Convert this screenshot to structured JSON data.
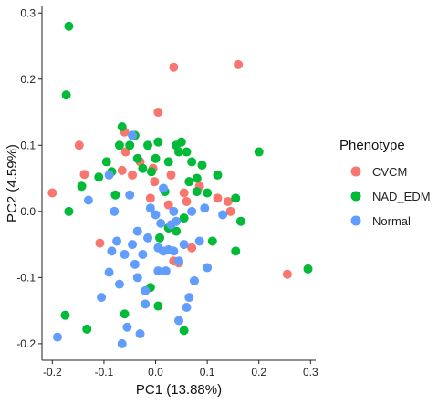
{
  "chart_data": {
    "type": "scatter",
    "xlabel": "PC1 (13.88%)",
    "ylabel": "PC2 (4.59%)",
    "xlim": [
      -0.22,
      0.31
    ],
    "ylim": [
      -0.225,
      0.31
    ],
    "xticks": [
      -0.2,
      -0.1,
      0.0,
      0.1,
      0.2,
      0.3
    ],
    "xtick_labels": [
      "-0.2",
      "-0.1",
      "0.0",
      "0.1",
      "0.2",
      "0.3"
    ],
    "yticks": [
      -0.2,
      -0.1,
      0.0,
      0.1,
      0.2,
      0.3
    ],
    "ytick_labels": [
      "-0.2",
      "-0.1",
      "0.0",
      "0.1",
      "0.2",
      "0.3"
    ],
    "grid": false,
    "legend": {
      "title": "Phenotype",
      "placement": "right"
    },
    "series": [
      {
        "name": "CVCM",
        "color": "#F8766D",
        "points": [
          [
            -0.2,
            0.028
          ],
          [
            -0.148,
            0.1
          ],
          [
            -0.138,
            0.056
          ],
          [
            -0.108,
            -0.048
          ],
          [
            0.035,
            0.218
          ],
          [
            0.16,
            0.222
          ],
          [
            0.005,
            0.15
          ],
          [
            -0.058,
            0.09
          ],
          [
            -0.045,
            0.055
          ],
          [
            -0.065,
            0.062
          ],
          [
            -0.03,
            0.075
          ],
          [
            -0.005,
            0.065
          ],
          [
            -0.002,
            0.045
          ],
          [
            -0.01,
            0.02
          ],
          [
            0.03,
            0.055
          ],
          [
            0.025,
            0.01
          ],
          [
            0.06,
            0.015
          ],
          [
            0.055,
            0.028
          ],
          [
            0.085,
            0.038
          ],
          [
            0.035,
            -0.075
          ],
          [
            0.045,
            -0.078
          ],
          [
            0.12,
            0.02
          ],
          [
            0.145,
            0.0
          ],
          [
            0.14,
            0.015
          ],
          [
            0.07,
            -0.055
          ],
          [
            0.255,
            -0.095
          ],
          [
            -0.06,
            0.12
          ]
        ]
      },
      {
        "name": "NAD_EDM",
        "color": "#00BA38",
        "points": [
          [
            -0.168,
            0.28
          ],
          [
            -0.173,
            0.176
          ],
          [
            -0.175,
            -0.157
          ],
          [
            -0.168,
            0.0
          ],
          [
            -0.143,
            0.038
          ],
          [
            -0.133,
            -0.178
          ],
          [
            -0.11,
            0.052
          ],
          [
            -0.095,
            0.075
          ],
          [
            -0.085,
            0.06
          ],
          [
            -0.078,
            0.025
          ],
          [
            -0.07,
            0.1
          ],
          [
            -0.065,
            0.128
          ],
          [
            -0.05,
            0.1
          ],
          [
            -0.04,
            0.115
          ],
          [
            -0.035,
            0.08
          ],
          [
            -0.025,
            0.065
          ],
          [
            -0.015,
            0.1
          ],
          [
            -0.008,
            0.06
          ],
          [
            0.0,
            0.08
          ],
          [
            0.005,
            -0.143
          ],
          [
            0.018,
            0.03
          ],
          [
            0.025,
            0.075
          ],
          [
            0.04,
            0.1
          ],
          [
            0.045,
            0.09
          ],
          [
            0.05,
            0.105
          ],
          [
            0.06,
            0.09
          ],
          [
            0.065,
            0.045
          ],
          [
            0.07,
            0.075
          ],
          [
            0.08,
            0.05
          ],
          [
            0.09,
            0.07
          ],
          [
            0.025,
            -0.025
          ],
          [
            0.055,
            -0.01
          ],
          [
            0.08,
            0.03
          ],
          [
            0.1,
            0.028
          ],
          [
            0.12,
            0.055
          ],
          [
            0.11,
            -0.045
          ],
          [
            0.155,
            0.02
          ],
          [
            0.155,
            -0.06
          ],
          [
            0.165,
            -0.015
          ],
          [
            0.2,
            0.09
          ],
          [
            0.295,
            -0.087
          ],
          [
            0.055,
            -0.18
          ],
          [
            -0.01,
            -0.115
          ],
          [
            -0.06,
            -0.155
          ],
          [
            0.008,
            -0.04
          ],
          [
            0.04,
            -0.03
          ],
          [
            0.005,
            0.105
          ]
        ]
      },
      {
        "name": "Normal",
        "color": "#619CFF",
        "points": [
          [
            -0.19,
            -0.19
          ],
          [
            -0.13,
            0.017
          ],
          [
            -0.09,
            0.055
          ],
          [
            -0.105,
            -0.13
          ],
          [
            -0.09,
            -0.092
          ],
          [
            -0.085,
            -0.06
          ],
          [
            -0.075,
            -0.045
          ],
          [
            -0.07,
            -0.11
          ],
          [
            -0.065,
            -0.2
          ],
          [
            -0.055,
            -0.175
          ],
          [
            -0.05,
            0.025
          ],
          [
            -0.045,
            -0.05
          ],
          [
            -0.04,
            -0.08
          ],
          [
            -0.035,
            -0.1
          ],
          [
            -0.03,
            -0.185
          ],
          [
            -0.025,
            -0.065
          ],
          [
            -0.02,
            -0.12
          ],
          [
            -0.015,
            -0.04
          ],
          [
            -0.01,
            0.005
          ],
          [
            0.0,
            -0.005
          ],
          [
            0.005,
            -0.055
          ],
          [
            0.01,
            -0.018
          ],
          [
            0.015,
            0.035
          ],
          [
            0.015,
            -0.06
          ],
          [
            0.02,
            -0.09
          ],
          [
            0.025,
            -0.058
          ],
          [
            0.03,
            -0.02
          ],
          [
            0.035,
            -0.06
          ],
          [
            0.04,
            -0.015
          ],
          [
            0.045,
            -0.075
          ],
          [
            0.045,
            -0.165
          ],
          [
            0.055,
            -0.05
          ],
          [
            0.06,
            -0.145
          ],
          [
            0.065,
            -0.13
          ],
          [
            0.075,
            -0.105
          ],
          [
            0.085,
            -0.045
          ],
          [
            0.095,
            0.005
          ],
          [
            0.1,
            -0.085
          ],
          [
            0.13,
            -0.005
          ],
          [
            0.07,
            0.0
          ],
          [
            -0.06,
            -0.065
          ],
          [
            0.005,
            -0.09
          ],
          [
            -0.02,
            -0.14
          ],
          [
            0.035,
            0.0
          ],
          [
            -0.035,
            -0.03
          ],
          [
            -0.08,
            0.0
          ],
          [
            -0.045,
            0.115
          ]
        ]
      }
    ]
  }
}
